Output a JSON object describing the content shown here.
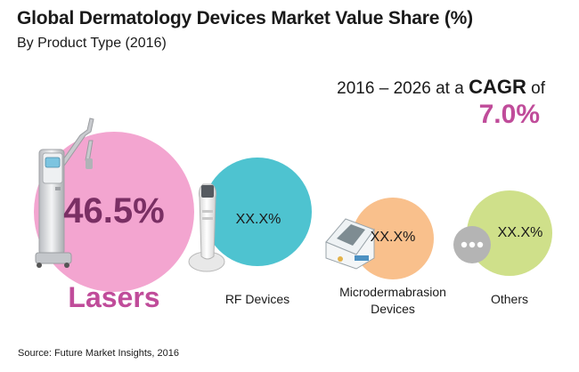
{
  "header": {
    "title": "Global Dermatology Devices Market Value Share (%)",
    "subtitle": "By Product Type (2016)"
  },
  "cagr": {
    "prefix": "2016 – 2026 at a ",
    "keyword": "CAGR",
    "suffix": " of",
    "value": "7.0%"
  },
  "source": "Source: Future Market Insights, 2016",
  "colors": {
    "lasers": "#f3a5d0",
    "rf_devices": "#4ec3d0",
    "microdermabrasion": "#f9c08c",
    "others": "#cfe08a",
    "accent": "#c04c9a"
  },
  "chart_data": {
    "type": "bubble",
    "title": "Global Dermatology Devices Market Value Share (%)",
    "subtitle": "By Product Type (2016)",
    "categories": [
      "Lasers",
      "RF Devices",
      "Microdermabrasion Devices",
      "Others"
    ],
    "series": [
      {
        "values": [
          46.5,
          null,
          null,
          null
        ],
        "labels": [
          "46.5%",
          "XX.X%",
          "XX.X%",
          "XX.X%"
        ]
      }
    ],
    "icons": [
      "laser-device-icon",
      "rf-device-icon",
      "microdermabrasion-device-icon",
      "more-dots-icon"
    ]
  }
}
